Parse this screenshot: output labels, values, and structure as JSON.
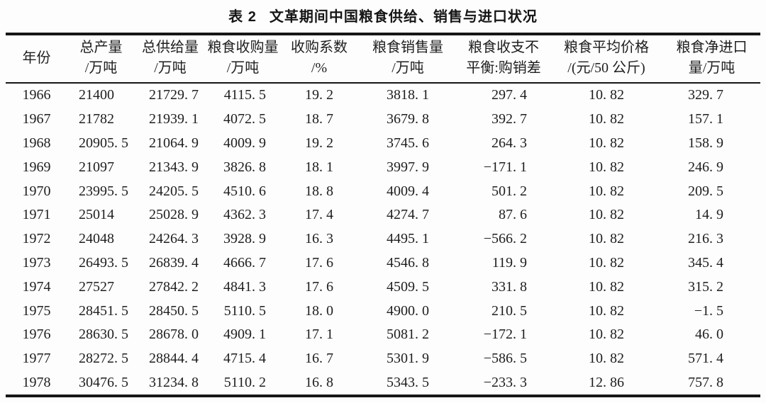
{
  "page": {
    "background_color": "#fdfdfd",
    "text_color": "#1e1e1e",
    "rule_color": "#161616"
  },
  "title": {
    "label": "表 2",
    "text": "文革期间中国粮食供给、销售与进口状况"
  },
  "table": {
    "col_keys": [
      "year",
      "total-output",
      "total-supply",
      "procurement",
      "procurement-ratio",
      "sales",
      "imbalance",
      "avg-price",
      "net-import"
    ],
    "headers": [
      [
        "年份",
        ""
      ],
      [
        "总产量",
        "/万吨"
      ],
      [
        "总供给量",
        "/万吨"
      ],
      [
        "粮食收购量",
        "/万吨"
      ],
      [
        "收购系数",
        "/%"
      ],
      [
        "粮食销售量",
        "/万吨"
      ],
      [
        "粮食收支不",
        "平衡:购销差"
      ],
      [
        "粮食平均价格",
        "/(元/50 公斤)"
      ],
      [
        "粮食净进口",
        "量/万吨"
      ]
    ],
    "rows": [
      [
        "1966",
        "21400",
        "21729. 7",
        "4115. 5",
        "19. 2",
        "3818. 1",
        "297. 4",
        "10. 82",
        "329. 7"
      ],
      [
        "1967",
        "21782",
        "21939. 1",
        "4072. 5",
        "18. 7",
        "3679. 8",
        "392. 7",
        "10. 82",
        "157. 1"
      ],
      [
        "1968",
        "20905. 5",
        "21064. 9",
        "4009. 9",
        "19. 2",
        "3745. 6",
        "264. 3",
        "10. 82",
        "158. 9"
      ],
      [
        "1969",
        "21097",
        "21343. 9",
        "3826. 8",
        "18. 1",
        "3997. 9",
        "−171. 1",
        "10. 82",
        "246. 9"
      ],
      [
        "1970",
        "23995. 5",
        "24205. 5",
        "4510. 6",
        "18. 8",
        "4009. 4",
        "501. 2",
        "10. 82",
        "209. 5"
      ],
      [
        "1971",
        "25014",
        "25028. 9",
        "4362. 3",
        "17. 4",
        "4274. 7",
        "87. 6",
        "10. 82",
        "14. 9"
      ],
      [
        "1972",
        "24048",
        "24264. 3",
        "3928. 9",
        "16. 3",
        "4495. 1",
        "−566. 2",
        "10. 82",
        "216. 3"
      ],
      [
        "1973",
        "26493. 5",
        "26839. 4",
        "4666. 7",
        "17. 6",
        "4546. 8",
        "119. 9",
        "10. 82",
        "345. 4"
      ],
      [
        "1974",
        "27527",
        "27842. 2",
        "4841. 3",
        "17. 6",
        "4509. 5",
        "331. 8",
        "10. 82",
        "315. 2"
      ],
      [
        "1975",
        "28451. 5",
        "28450. 5",
        "5110. 5",
        "18. 0",
        "4900. 0",
        "210. 5",
        "10. 82",
        "−1. 5"
      ],
      [
        "1976",
        "28630. 5",
        "28678. 0",
        "4909. 1",
        "17. 1",
        "5081. 2",
        "−172. 1",
        "10. 82",
        "46. 0"
      ],
      [
        "1977",
        "28272. 5",
        "28844. 4",
        "4715. 4",
        "16. 7",
        "5301. 9",
        "−586. 5",
        "10. 82",
        "571. 4"
      ],
      [
        "1978",
        "30476. 5",
        "31234. 8",
        "5110. 2",
        "16. 8",
        "5343. 5",
        "−233. 3",
        "12. 86",
        "757. 8"
      ]
    ]
  }
}
